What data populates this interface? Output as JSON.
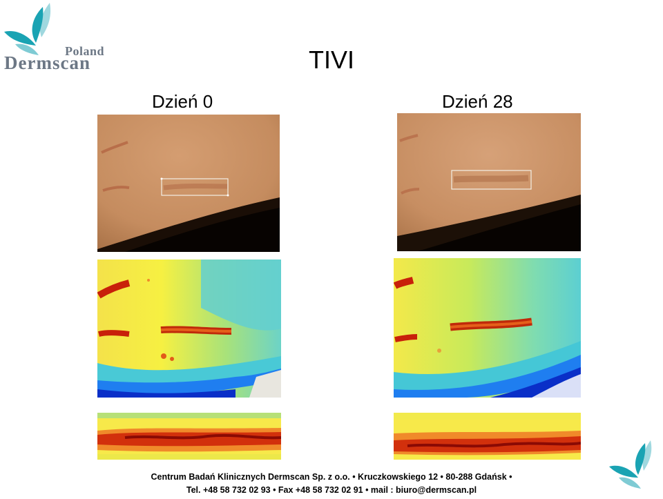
{
  "slide": {
    "title": "TIVI",
    "logo": {
      "line1": "Poland",
      "line2": "Dermscan"
    },
    "columns": [
      {
        "label": "Dzień 0"
      },
      {
        "label": "Dzień 28"
      }
    ],
    "footer": {
      "line1": "Centrum Badań Klinicznych Dermscan  Sp. z o.o. • Kruczkowskiego 12 • 80-288 Gdańsk •",
      "line2": "Tel. +48 58 732 02 93 • Fax +48 58 732 02 91 • mail : biuro@dermscan.pl"
    },
    "colors": {
      "logo_teal": "#1aa3b3",
      "logo_text": "#6c7785"
    }
  }
}
